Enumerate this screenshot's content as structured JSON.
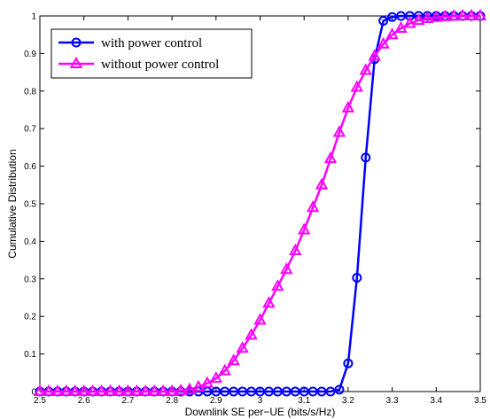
{
  "chart_data": {
    "type": "line",
    "title": "",
    "xlabel": "Downlink SE per−UE (bits/s/Hz)",
    "ylabel": "Cumulative Distribution",
    "xlim": [
      2.5,
      3.5
    ],
    "ylim": [
      0,
      1
    ],
    "xticks": [
      "2.5",
      "2.6",
      "2.7",
      "2.8",
      "2.9",
      "3",
      "3.1",
      "3.2",
      "3.3",
      "3.4",
      "3.5"
    ],
    "yticks": [
      "0",
      "0.1",
      "0.2",
      "0.3",
      "0.4",
      "0.5",
      "0.6",
      "0.7",
      "0.8",
      "0.9",
      "1"
    ],
    "grid": false,
    "legend_position": "top-left",
    "series": [
      {
        "name": "with power control",
        "color": "#0000ff",
        "marker": "circle",
        "x": [
          2.5,
          2.52,
          2.54,
          2.56,
          2.58,
          2.6,
          2.62,
          2.64,
          2.66,
          2.68,
          2.7,
          2.72,
          2.74,
          2.76,
          2.78,
          2.8,
          2.82,
          2.84,
          2.86,
          2.88,
          2.9,
          2.92,
          2.94,
          2.96,
          2.98,
          3.0,
          3.02,
          3.04,
          3.06,
          3.08,
          3.1,
          3.12,
          3.14,
          3.16,
          3.18,
          3.2,
          3.22,
          3.24,
          3.26,
          3.28,
          3.3,
          3.32,
          3.34,
          3.36,
          3.38,
          3.4,
          3.42,
          3.44,
          3.46,
          3.48,
          3.5
        ],
        "y": [
          0,
          0,
          0,
          0,
          0,
          0,
          0,
          0,
          0,
          0,
          0,
          0,
          0,
          0,
          0,
          0,
          0,
          0,
          0,
          0,
          0,
          0,
          0,
          0,
          0,
          0,
          0,
          0,
          0,
          0,
          0,
          0,
          0,
          0,
          0.005,
          0.075,
          0.303,
          0.623,
          0.885,
          0.987,
          0.997,
          1,
          1,
          1,
          1,
          1,
          1,
          1,
          1,
          1,
          1
        ]
      },
      {
        "name": "without power control",
        "color": "#ff00ff",
        "marker": "triangle",
        "x": [
          2.5,
          2.52,
          2.54,
          2.56,
          2.58,
          2.6,
          2.62,
          2.64,
          2.66,
          2.68,
          2.7,
          2.72,
          2.74,
          2.76,
          2.78,
          2.8,
          2.82,
          2.84,
          2.86,
          2.88,
          2.9,
          2.92,
          2.94,
          2.96,
          2.98,
          3.0,
          3.02,
          3.04,
          3.06,
          3.08,
          3.1,
          3.12,
          3.14,
          3.16,
          3.18,
          3.2,
          3.22,
          3.24,
          3.26,
          3.28,
          3.3,
          3.32,
          3.34,
          3.36,
          3.38,
          3.4,
          3.42,
          3.44,
          3.46,
          3.48,
          3.5
        ],
        "y": [
          0,
          0,
          0,
          0,
          0,
          0,
          0,
          0,
          0,
          0,
          0,
          0,
          0,
          0,
          0,
          0,
          0.002,
          0.005,
          0.012,
          0.022,
          0.035,
          0.055,
          0.082,
          0.115,
          0.15,
          0.19,
          0.235,
          0.28,
          0.325,
          0.375,
          0.43,
          0.49,
          0.55,
          0.62,
          0.69,
          0.755,
          0.81,
          0.855,
          0.893,
          0.925,
          0.95,
          0.967,
          0.98,
          0.988,
          0.993,
          0.996,
          0.998,
          0.999,
          1,
          1,
          1
        ]
      }
    ]
  }
}
